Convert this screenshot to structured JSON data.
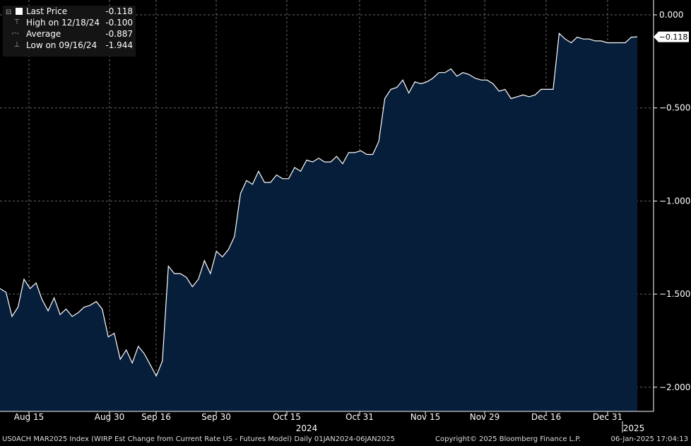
{
  "legend": {
    "last_price": {
      "label": "Last Price",
      "value": "-0.118"
    },
    "high": {
      "label": "High on 12/18/24",
      "value": "-0.100"
    },
    "average": {
      "label": "Average",
      "value": "-0.887"
    },
    "low": {
      "label": "Low on 09/16/24",
      "value": "-1.944"
    }
  },
  "footer": {
    "left": "US0ACH MAR2025 Index (WIRP Est Change from Current Rate US - Futures Model)  Daily 01JAN2024-06JAN2025",
    "copyright": "Copyright© 2025 Bloomberg Finance L.P.",
    "timestamp": "06-Jan-2025 17:04:13"
  },
  "colors": {
    "background": "#000000",
    "area_fill": "#071e3a",
    "line": "#ffffff",
    "grid": "#666666"
  },
  "chart_data": {
    "type": "area",
    "title": "",
    "xlabel": "",
    "ylabel": "",
    "ylim": [
      -2.15,
      0.05
    ],
    "y_ticks": [
      "0.000",
      "-0.500",
      "-1.000",
      "-1.500",
      "-2.000"
    ],
    "x_ticks": [
      "Aug 15",
      "Aug 30",
      "Sep 16",
      "Sep 30",
      "Oct 15",
      "Oct 31",
      "Nov 15",
      "Nov 29",
      "Dec 16",
      "Dec 31"
    ],
    "year_labels": [
      "2024",
      "2025"
    ],
    "last_value_label": "-0.118",
    "grid": true,
    "legend_position": "top-left",
    "series": [
      {
        "values": [
          -1.47,
          -1.49,
          -1.62,
          -1.57,
          -1.42,
          -1.47,
          -1.44,
          -1.53,
          -1.59,
          -1.52,
          -1.61,
          -1.58,
          -1.62,
          -1.6,
          -1.57,
          -1.56,
          -1.54,
          -1.58,
          -1.73,
          -1.71,
          -1.85,
          -1.8,
          -1.87,
          -1.78,
          -1.82,
          -1.88,
          -1.94,
          -1.86,
          -1.35,
          -1.39,
          -1.39,
          -1.41,
          -1.46,
          -1.42,
          -1.32,
          -1.39,
          -1.27,
          -1.3,
          -1.26,
          -1.19,
          -0.96,
          -0.89,
          -0.91,
          -0.84,
          -0.9,
          -0.9,
          -0.86,
          -0.88,
          -0.88,
          -0.82,
          -0.84,
          -0.78,
          -0.79,
          -0.77,
          -0.79,
          -0.79,
          -0.76,
          -0.8,
          -0.74,
          -0.74,
          -0.73,
          -0.75,
          -0.75,
          -0.68,
          -0.45,
          -0.4,
          -0.39,
          -0.35,
          -0.42,
          -0.36,
          -0.37,
          -0.36,
          -0.34,
          -0.31,
          -0.31,
          -0.29,
          -0.33,
          -0.31,
          -0.32,
          -0.34,
          -0.35,
          -0.35,
          -0.37,
          -0.41,
          -0.4,
          -0.45,
          -0.44,
          -0.43,
          -0.44,
          -0.43,
          -0.4,
          -0.4,
          -0.4,
          -0.1,
          -0.13,
          -0.15,
          -0.12,
          -0.13,
          -0.13,
          -0.14,
          -0.14,
          -0.15,
          -0.15,
          -0.15,
          -0.15,
          -0.12,
          -0.118
        ]
      }
    ]
  }
}
